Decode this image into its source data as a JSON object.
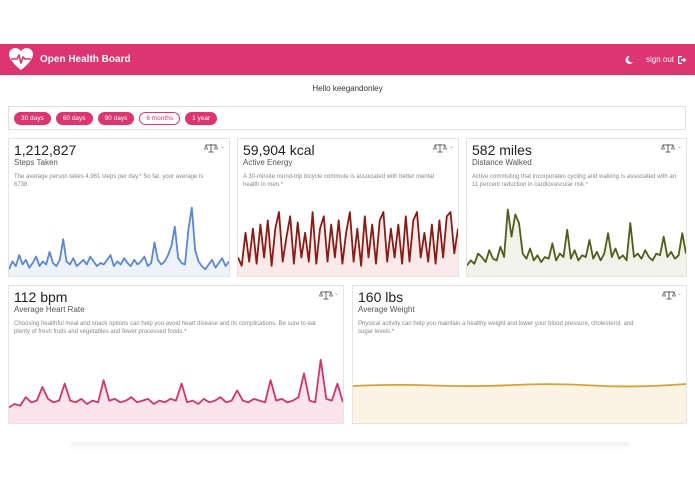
{
  "app": {
    "title": "Open Health Board",
    "signout": "sign out"
  },
  "greeting": "Hello keegandonley",
  "ranges": [
    {
      "label": "30 days",
      "active": true
    },
    {
      "label": "60 days",
      "active": true
    },
    {
      "label": "90 days",
      "active": true
    },
    {
      "label": "6 months",
      "active": false
    },
    {
      "label": "1 year",
      "active": true
    }
  ],
  "colors": {
    "brand": "#dd3570",
    "steps": "#5b86d6",
    "energy": "#8b1a14",
    "distance": "#4f5e1c",
    "heart": "#d6326d",
    "weight": "#dba035"
  },
  "cards": {
    "steps": {
      "value": "1,212,827",
      "label": "Steps Taken",
      "note": "The average person takes 4,961 steps per day.* So far, your average is 6738."
    },
    "energy": {
      "value": "59,904 kcal",
      "label": "Active Energy",
      "note": "A 30-minute round-trip bicycle commute is associated with better mental health in men.*"
    },
    "distance": {
      "value": "582 miles",
      "label": "Distance Walked",
      "note": "Active commuting that incorporates cycling and walking is associated with an 11 percent reduction in cardiovascular risk.*"
    },
    "heart": {
      "value": "112 bpm",
      "label": "Average Heart Rate",
      "note": "Choosing healthful meal and snack options can help you avoid heart disease and its complications. Be sure to eat plenty of fresh fruits and vegetables and fewer processed foods.*"
    },
    "weight": {
      "value": "160 lbs",
      "label": "Average Weight",
      "note": "Physical activity can help you maintain a healthy weight and lower your blood pressure, cholesterol, and sugar levels.*"
    }
  },
  "series": {
    "steps": [
      3,
      8,
      5,
      12,
      6,
      9,
      4,
      7,
      11,
      5,
      8,
      6,
      14,
      7,
      5,
      9,
      22,
      8,
      6,
      10,
      5,
      7,
      9,
      6,
      11,
      8,
      5,
      7,
      6,
      9,
      12,
      5,
      8,
      6,
      10,
      7,
      5,
      9,
      6,
      8,
      11,
      5,
      7,
      20,
      9,
      6,
      8,
      12,
      18,
      30,
      10,
      7,
      6,
      28,
      42,
      15,
      8,
      5,
      3,
      6,
      9,
      4,
      7,
      10,
      5,
      8
    ],
    "energy": [
      8,
      4,
      20,
      6,
      22,
      5,
      24,
      8,
      26,
      4,
      22,
      30,
      6,
      18,
      28,
      5,
      25,
      8,
      20,
      6,
      30,
      5,
      22,
      28,
      6,
      24,
      8,
      26,
      5,
      20,
      30,
      6,
      22,
      4,
      28,
      8,
      24,
      5,
      26,
      30,
      6,
      22,
      8,
      24,
      5,
      28,
      6,
      26,
      30,
      8,
      20,
      6,
      24,
      5,
      26,
      8,
      28,
      30,
      10,
      22
    ],
    "distance": [
      5,
      8,
      6,
      12,
      10,
      7,
      14,
      9,
      8,
      16,
      10,
      38,
      22,
      35,
      30,
      12,
      9,
      15,
      8,
      11,
      7,
      10,
      9,
      18,
      8,
      12,
      10,
      26,
      9,
      14,
      8,
      11,
      10,
      20,
      9,
      13,
      8,
      12,
      24,
      10,
      15,
      9,
      11,
      8,
      30,
      10,
      12,
      9,
      14,
      10,
      8,
      12,
      11,
      22,
      10,
      13,
      9,
      11,
      24,
      12
    ],
    "heart": [
      8,
      10,
      9,
      14,
      11,
      12,
      20,
      13,
      11,
      12,
      22,
      12,
      11,
      13,
      10,
      12,
      11,
      24,
      12,
      13,
      11,
      12,
      14,
      11,
      12,
      13,
      10,
      12,
      11,
      13,
      12,
      22,
      11,
      12,
      10,
      13,
      11,
      12,
      14,
      11,
      12,
      18,
      12,
      11,
      13,
      12,
      11,
      24,
      12,
      13,
      11,
      12,
      14,
      28,
      12,
      11,
      36,
      13,
      12,
      22,
      11
    ]
  }
}
